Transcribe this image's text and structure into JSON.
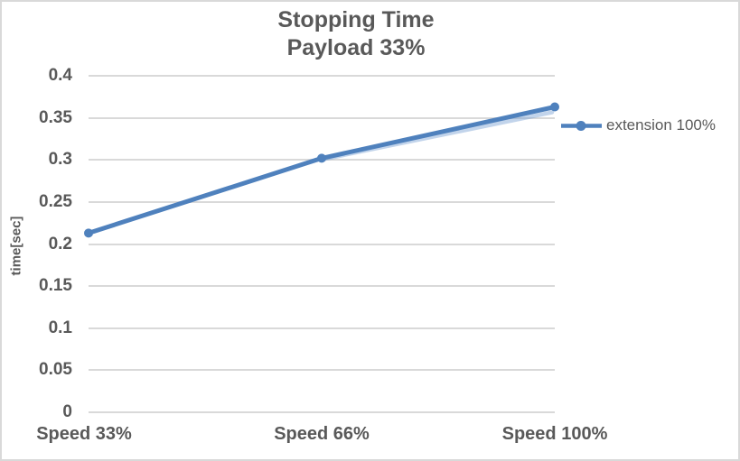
{
  "chart": {
    "title_line1": "Stopping Time",
    "title_line2": "Payload 33%",
    "y_axis_title": "time[sec]",
    "legend_label": "extension 100%"
  },
  "chart_data": {
    "type": "line",
    "title": "Stopping Time",
    "subtitle": "Payload 33%",
    "categories": [
      "Speed 33%",
      "Speed 66%",
      "Speed 100%"
    ],
    "series": [
      {
        "name": "extension 100%",
        "values": [
          0.213,
          0.302,
          0.363
        ]
      }
    ],
    "xlabel": "",
    "ylabel": "time[sec]",
    "ylim": [
      0,
      0.4
    ],
    "ytick_step": 0.05,
    "grid": true,
    "legend_position": "right",
    "marker": "circle",
    "colors": {
      "series": "#4F81BD",
      "series_shadow": "rgba(120,160,210,0.45)",
      "gridline": "#D9D9D9",
      "text": "#595959",
      "border": "#D9D9D9",
      "background": "#FFFFFF"
    }
  }
}
